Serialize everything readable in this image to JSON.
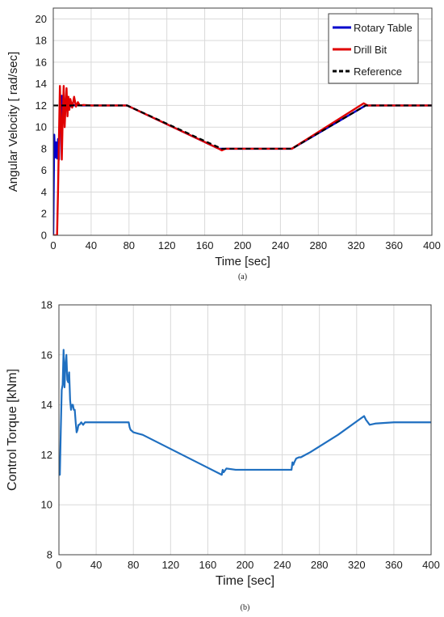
{
  "chart_data": [
    {
      "type": "line",
      "caption": "(a)",
      "xlabel": "Time [sec]",
      "ylabel": "Angular Velocity [ rad/sec]",
      "xlim": [
        0,
        400
      ],
      "ylim": [
        0,
        21
      ],
      "xticks": [
        0,
        40,
        80,
        120,
        160,
        200,
        240,
        280,
        320,
        360,
        400
      ],
      "yticks": [
        0,
        2,
        4,
        6,
        8,
        10,
        12,
        14,
        16,
        18,
        20
      ],
      "grid": true,
      "legend_position": "top-right",
      "series": [
        {
          "name": "Rotary Table",
          "color": "#0000CC",
          "x": [
            0,
            1,
            2,
            3,
            4,
            5,
            6,
            7,
            8,
            9,
            10,
            11,
            12,
            13,
            14,
            15,
            16,
            17,
            18,
            20,
            22,
            25,
            30,
            40,
            78,
            175,
            180,
            252,
            330,
            335,
            400
          ],
          "y": [
            0,
            9.3,
            7.2,
            8.6,
            7.1,
            8.9,
            7.0,
            12.6,
            10.8,
            12.9,
            11.0,
            12.6,
            11.2,
            12.5,
            11.6,
            12.3,
            11.8,
            12.3,
            11.9,
            12.2,
            12.0,
            12.05,
            12.0,
            12.0,
            12.0,
            8.0,
            8.0,
            8.0,
            12.0,
            12.0,
            12.0
          ]
        },
        {
          "name": "Drill Bit",
          "color": "#E00000",
          "x": [
            0,
            4,
            5,
            6,
            7,
            8,
            9,
            10,
            11,
            12,
            13,
            14,
            15,
            16,
            17,
            18,
            20,
            22,
            24,
            26,
            28,
            32,
            40,
            78,
            175,
            178,
            182,
            252,
            328,
            332,
            400
          ],
          "y": [
            0,
            0,
            4.0,
            9.0,
            13.8,
            10.5,
            7.0,
            11.0,
            13.8,
            10.0,
            12.0,
            13.6,
            11.0,
            12.8,
            11.6,
            12.6,
            11.8,
            12.8,
            11.9,
            12.3,
            12.0,
            12.05,
            12.0,
            12.0,
            8.0,
            7.85,
            8.0,
            8.0,
            12.2,
            12.0,
            12.0
          ]
        },
        {
          "name": "Reference",
          "color": "#000000",
          "dashed": true,
          "x": [
            0,
            78,
            178,
            252,
            330,
            400
          ],
          "y": [
            12,
            12,
            8,
            8,
            12,
            12
          ]
        }
      ]
    },
    {
      "type": "line",
      "caption": "(b)",
      "xlabel": "Time [sec]",
      "ylabel": "Control Torque [kNm]",
      "xlim": [
        0,
        400
      ],
      "ylim": [
        8,
        18
      ],
      "xticks": [
        0,
        40,
        80,
        120,
        160,
        200,
        240,
        280,
        320,
        360,
        400
      ],
      "yticks": [
        8,
        10,
        12,
        14,
        16,
        18
      ],
      "grid": true,
      "series": [
        {
          "color": "#1F6FC0",
          "x": [
            0,
            1,
            2,
            3,
            4,
            5,
            6,
            7,
            8,
            9,
            10,
            11,
            12,
            13,
            14,
            15,
            16,
            17,
            18,
            19,
            20,
            21,
            22,
            24,
            26,
            28,
            30,
            35,
            40,
            75,
            76,
            77,
            80,
            85,
            90,
            175,
            176,
            177,
            180,
            190,
            200,
            250,
            251,
            252,
            253,
            255,
            258,
            260,
            265,
            270,
            300,
            328,
            330,
            334,
            340,
            360,
            400
          ],
          "y": [
            11.2,
            11.2,
            13.0,
            14.6,
            14.8,
            16.2,
            14.7,
            15.6,
            16.0,
            15.0,
            14.9,
            15.3,
            14.2,
            13.8,
            14.0,
            14.0,
            13.8,
            13.8,
            13.3,
            12.9,
            13.0,
            13.2,
            13.2,
            13.3,
            13.2,
            13.3,
            13.3,
            13.3,
            13.3,
            13.3,
            13.1,
            13.0,
            12.9,
            12.85,
            12.8,
            11.2,
            11.4,
            11.3,
            11.45,
            11.4,
            11.4,
            11.4,
            11.7,
            11.6,
            11.7,
            11.85,
            11.9,
            11.9,
            12.0,
            12.1,
            12.8,
            13.55,
            13.4,
            13.2,
            13.25,
            13.3,
            13.3
          ]
        }
      ]
    }
  ]
}
